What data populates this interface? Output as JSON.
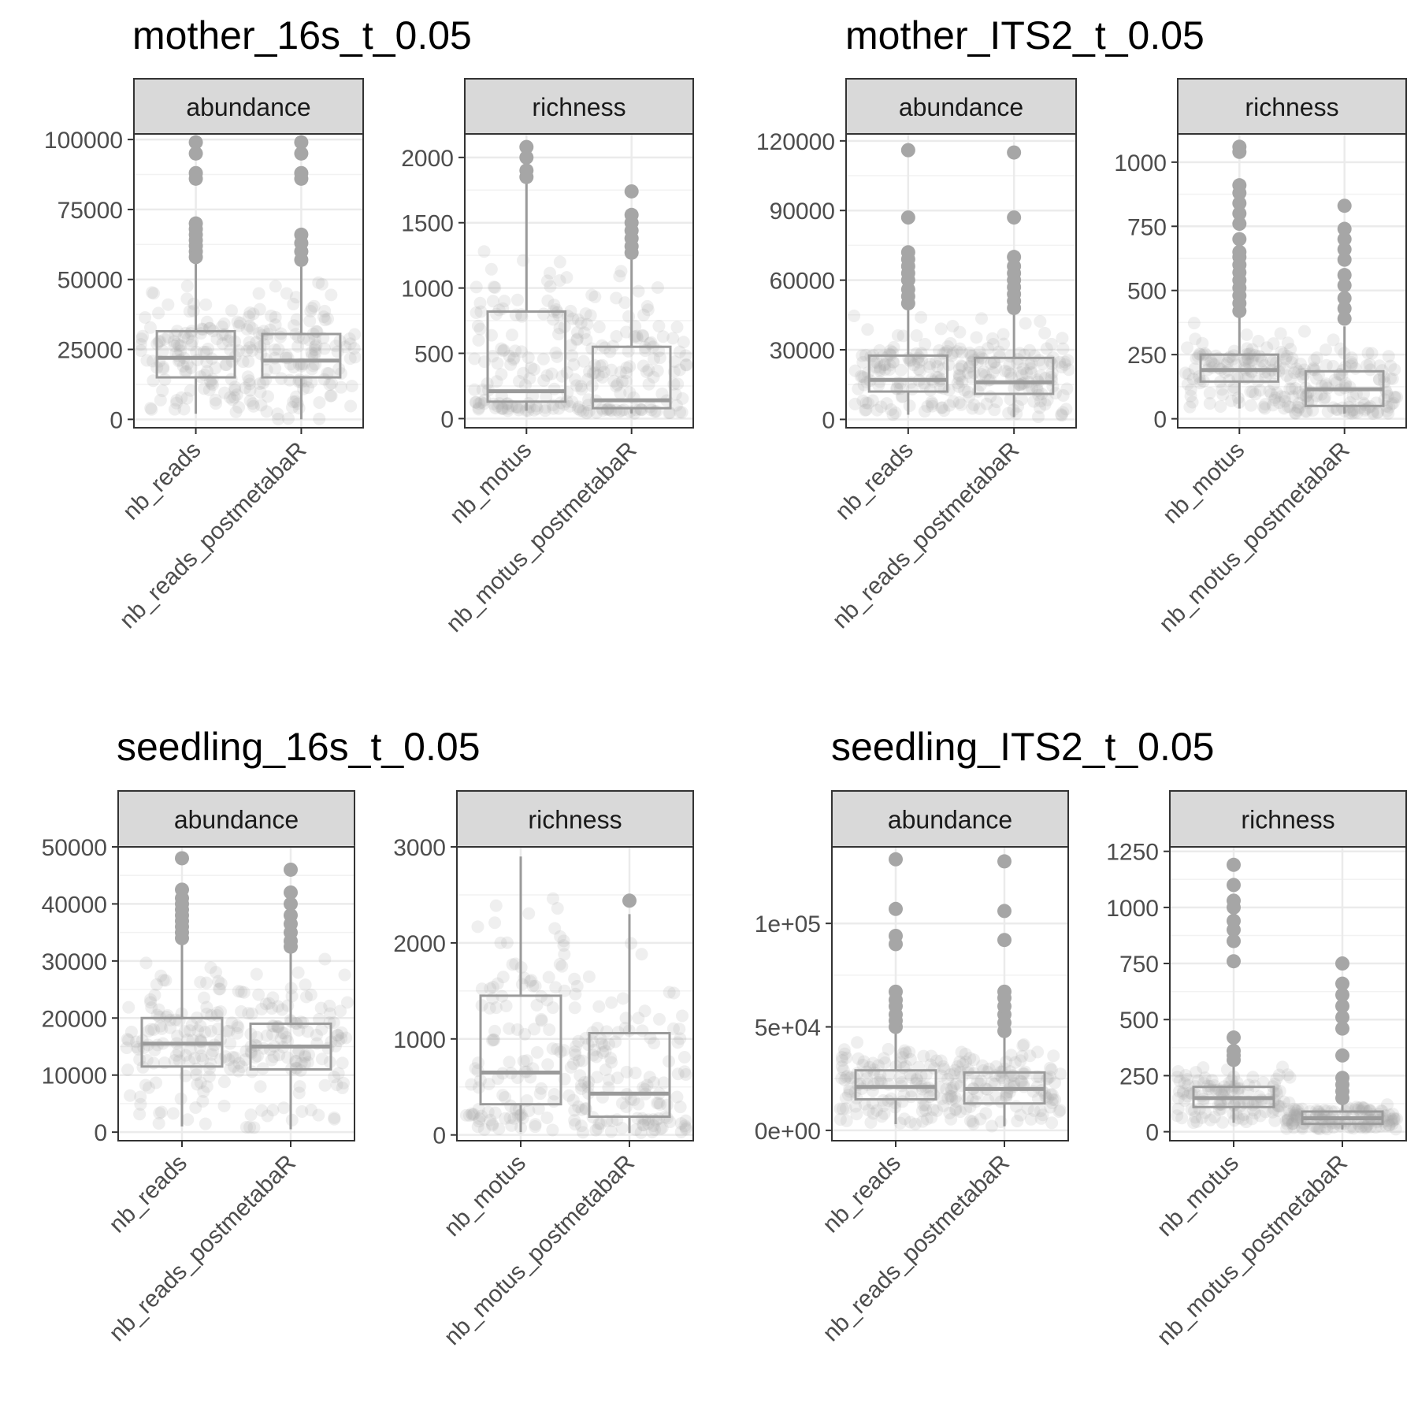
{
  "colors": {
    "box": "#9a9a9a",
    "point": "#a6a6a6",
    "strip_fill": "#d9d9d9",
    "grid": "#ebebeb",
    "text": "#4d4d4d"
  },
  "chart_data": [
    {
      "type": "box",
      "title": "mother_16s_t_0.05",
      "facets": [
        {
          "strip": "abundance",
          "ylim": [
            -3000,
            102000
          ],
          "yticks": [
            0,
            25000,
            50000,
            75000,
            100000
          ],
          "ytick_labels": [
            "0",
            "25000",
            "50000",
            "75000",
            "100000"
          ],
          "categories": [
            "nb_reads",
            "nb_reads_postmetabaR"
          ],
          "boxes": [
            {
              "min": 2000,
              "q1": 15000,
              "median": 22000,
              "q3": 31500,
              "max": 56000,
              "outliers": [
                58000,
                60000,
                62000,
                64000,
                66000,
                68000,
                70000,
                86000,
                88000,
                95000,
                99000
              ]
            },
            {
              "min": 0,
              "q1": 15000,
              "median": 21000,
              "q3": 30500,
              "max": 55000,
              "outliers": [
                57000,
                60000,
                63000,
                66000,
                86000,
                88000,
                95000,
                99000
              ]
            }
          ]
        },
        {
          "strip": "richness",
          "ylim": [
            -70,
            2180
          ],
          "yticks": [
            0,
            500,
            1000,
            1500,
            2000
          ],
          "ytick_labels": [
            "0",
            "500",
            "1000",
            "1500",
            "2000"
          ],
          "categories": [
            "nb_motus",
            "nb_motus_postmetabaR"
          ],
          "boxes": [
            {
              "min": 60,
              "q1": 130,
              "median": 210,
              "q3": 820,
              "max": 1820,
              "outliers": [
                1850,
                1900,
                2000,
                2080
              ]
            },
            {
              "min": 40,
              "q1": 80,
              "median": 140,
              "q3": 550,
              "max": 1250,
              "outliers": [
                1270,
                1320,
                1380,
                1440,
                1500,
                1560,
                1740
              ]
            }
          ]
        }
      ]
    },
    {
      "type": "box",
      "title": "mother_ITS2_t_0.05",
      "facets": [
        {
          "strip": "abundance",
          "ylim": [
            -3600,
            123000
          ],
          "yticks": [
            0,
            30000,
            60000,
            90000,
            120000
          ],
          "ytick_labels": [
            "0",
            "30000",
            "60000",
            "90000",
            "120000"
          ],
          "categories": [
            "nb_reads",
            "nb_reads_postmetabaR"
          ],
          "boxes": [
            {
              "min": 2000,
              "q1": 12000,
              "median": 17000,
              "q3": 27500,
              "max": 48000,
              "outliers": [
                50000,
                53000,
                56000,
                60000,
                63000,
                66000,
                69000,
                72000,
                87000,
                116000
              ]
            },
            {
              "min": 1000,
              "q1": 11000,
              "median": 16000,
              "q3": 26500,
              "max": 46000,
              "outliers": [
                48000,
                51000,
                54000,
                57000,
                60000,
                63000,
                66000,
                70000,
                87000,
                115000
              ]
            }
          ]
        },
        {
          "strip": "richness",
          "ylim": [
            -35,
            1110
          ],
          "yticks": [
            0,
            250,
            500,
            750,
            1000
          ],
          "ytick_labels": [
            "0",
            "250",
            "500",
            "750",
            "1000"
          ],
          "categories": [
            "nb_motus",
            "nb_motus_postmetabaR"
          ],
          "boxes": [
            {
              "min": 40,
              "q1": 145,
              "median": 190,
              "q3": 250,
              "max": 400,
              "outliers": [
                420,
                450,
                480,
                510,
                540,
                570,
                600,
                630,
                650,
                700,
                760,
                800,
                840,
                880,
                910,
                1040,
                1060
              ]
            },
            {
              "min": 20,
              "q1": 50,
              "median": 115,
              "q3": 185,
              "max": 360,
              "outliers": [
                390,
                430,
                470,
                520,
                560,
                620,
                660,
                700,
                740,
                830
              ]
            }
          ]
        }
      ]
    },
    {
      "type": "box",
      "title": "seedling_16s_t_0.05",
      "facets": [
        {
          "strip": "abundance",
          "ylim": [
            -1500,
            50000
          ],
          "yticks": [
            0,
            10000,
            20000,
            30000,
            40000,
            50000
          ],
          "ytick_labels": [
            "0",
            "10000",
            "20000",
            "30000",
            "40000",
            "50000"
          ],
          "categories": [
            "nb_reads",
            "nb_reads_postmetabaR"
          ],
          "boxes": [
            {
              "min": 1000,
              "q1": 11500,
              "median": 15500,
              "q3": 20000,
              "max": 33000,
              "outliers": [
                34000,
                35000,
                36000,
                37000,
                38000,
                39000,
                40000,
                41000,
                42500,
                48000
              ]
            },
            {
              "min": 500,
              "q1": 11000,
              "median": 15000,
              "q3": 19000,
              "max": 31500,
              "outliers": [
                32500,
                33500,
                35000,
                36500,
                38000,
                40000,
                42000,
                46000
              ]
            }
          ]
        },
        {
          "strip": "richness",
          "ylim": [
            -60,
            3000
          ],
          "yticks": [
            0,
            1000,
            2000,
            3000
          ],
          "ytick_labels": [
            "0",
            "1000",
            "2000",
            "3000"
          ],
          "categories": [
            "nb_motus",
            "nb_motus_postmetabaR"
          ],
          "boxes": [
            {
              "min": 30,
              "q1": 320,
              "median": 650,
              "q3": 1450,
              "max": 2900,
              "outliers": []
            },
            {
              "min": 20,
              "q1": 190,
              "median": 430,
              "q3": 1060,
              "max": 2300,
              "outliers": [
                2440
              ]
            }
          ]
        }
      ]
    },
    {
      "type": "box",
      "title": "seedling_ITS2_t_0.05",
      "facets": [
        {
          "strip": "abundance",
          "ylim": [
            -5000,
            137000
          ],
          "yticks": [
            0,
            50000,
            100000
          ],
          "ytick_labels": [
            "0e+00",
            "5e+04",
            "1e+05"
          ],
          "categories": [
            "nb_reads",
            "nb_reads_postmetabaR"
          ],
          "boxes": [
            {
              "min": 3000,
              "q1": 15000,
              "median": 21000,
              "q3": 29000,
              "max": 48000,
              "outliers": [
                50000,
                53000,
                56000,
                60000,
                63000,
                67000,
                90000,
                94000,
                107000,
                131000
              ]
            },
            {
              "min": 2000,
              "q1": 13000,
              "median": 20000,
              "q3": 28000,
              "max": 46000,
              "outliers": [
                48000,
                52000,
                56000,
                60000,
                64000,
                67000,
                92000,
                106000,
                130000
              ]
            }
          ]
        },
        {
          "strip": "richness",
          "ylim": [
            -40,
            1270
          ],
          "yticks": [
            0,
            250,
            500,
            750,
            1000,
            1250
          ],
          "ytick_labels": [
            "0",
            "250",
            "500",
            "750",
            "1000",
            "1250"
          ],
          "categories": [
            "nb_motus",
            "nb_motus_postmetabaR"
          ],
          "boxes": [
            {
              "min": 40,
              "q1": 110,
              "median": 150,
              "q3": 200,
              "max": 300,
              "outliers": [
                320,
                340,
                360,
                420,
                760,
                850,
                900,
                940,
                1000,
                1030,
                1100,
                1190
              ]
            },
            {
              "min": 10,
              "q1": 35,
              "median": 60,
              "q3": 90,
              "max": 130,
              "outliers": [
                150,
                180,
                210,
                240,
                340,
                460,
                510,
                560,
                610,
                660,
                750
              ]
            }
          ]
        }
      ]
    }
  ]
}
